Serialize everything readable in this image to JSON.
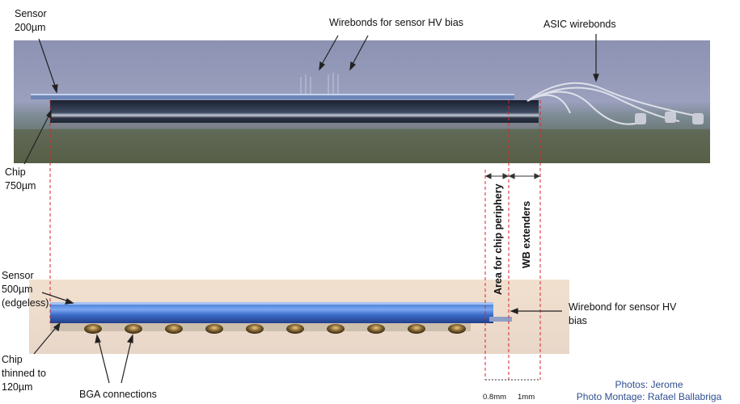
{
  "labels": {
    "sensor_top": [
      "Sensor",
      "200µm"
    ],
    "hv_wirebonds": "Wirebonds for sensor HV bias",
    "asic_wirebonds": "ASIC wirebonds",
    "chip_top": [
      "Chip",
      "750µm"
    ],
    "sensor_bottom": [
      "Sensor",
      "500µm",
      "(edgeless)"
    ],
    "chip_bottom": [
      "Chip",
      "thinned to",
      "120µm"
    ],
    "bga": "BGA connections",
    "wirebond_hv": [
      "Wirebond for sensor HV",
      "bias"
    ],
    "periphery_area": "Area for chip periphery",
    "wb_extenders": "WB extenders",
    "dim_periphery": "0.8mm",
    "dim_extenders": "1mm"
  },
  "credits": {
    "photos": "Photos: Jerome",
    "montage": "Photo Montage: Rafael Ballabriga"
  },
  "colors": {
    "guide_line": "#d9262b",
    "dim_line": "#333333",
    "credit_text": "#2f4f8f"
  }
}
